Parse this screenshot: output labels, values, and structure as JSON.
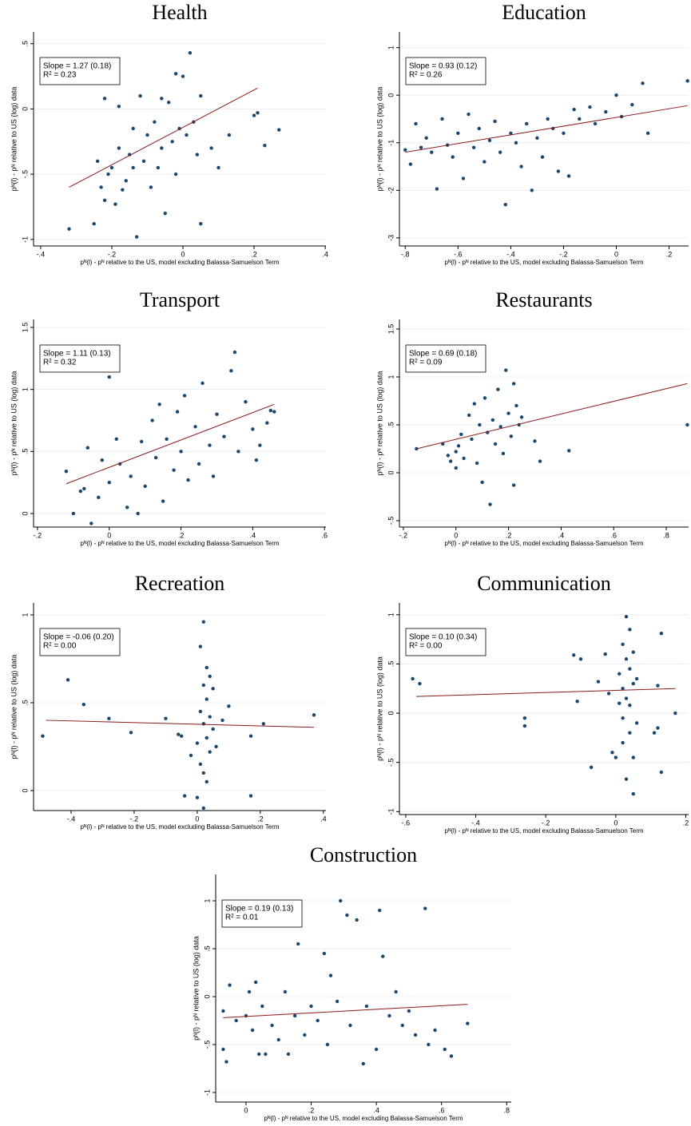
{
  "chart_data": [
    {
      "type": "scatter",
      "title": "Health",
      "annotation": [
        "Slope = 1.27 (0.18)",
        "R² = 0.23"
      ],
      "xlabel": "pᴺ(l) - pᴺ relative to the US, model excluding Balassa-Samuelson Term",
      "ylabel": "pᴺ(l) - pᴺ relative to US (log) data",
      "color": "#1a476f",
      "fit_color": "#8b1a1a",
      "grid": true,
      "xlim": [
        -0.42,
        0.402
      ],
      "ylim": [
        -1.05,
        0.59
      ],
      "xticks": [
        {
          "value": -0.4,
          "label": "-.4"
        },
        {
          "value": -0.2,
          "label": "-.2"
        },
        0,
        {
          "value": 0.2,
          "label": ".2"
        },
        {
          "value": 0.4,
          "label": ".4"
        }
      ],
      "yticks": [
        -1,
        {
          "value": -0.5,
          "label": "-.5"
        },
        0,
        {
          "value": 0.5,
          "label": ".5"
        }
      ],
      "x": [
        -0.32,
        -0.25,
        -0.24,
        -0.23,
        -0.22,
        -0.22,
        -0.21,
        -0.2,
        -0.19,
        -0.18,
        -0.17,
        -0.16,
        -0.15,
        -0.14,
        -0.13,
        -0.12,
        -0.11,
        -0.1,
        -0.09,
        -0.08,
        -0.07,
        -0.06,
        -0.05,
        -0.04,
        -0.03,
        -0.02,
        -0.01,
        0,
        0.01,
        0.02,
        0.03,
        0.04,
        0.05,
        0.05,
        0.08,
        0.1,
        0.13,
        0.2,
        0.23,
        0.27,
        0.21,
        -0.18,
        -0.14,
        -0.06,
        -0.02
      ],
      "y": [
        -0.92,
        -0.88,
        -0.4,
        -0.6,
        -0.7,
        0.08,
        -0.5,
        -0.45,
        -0.73,
        -0.3,
        -0.62,
        -0.55,
        -0.35,
        -0.15,
        -0.98,
        0.1,
        -0.4,
        -0.2,
        -0.6,
        -0.1,
        -0.45,
        -0.3,
        -0.8,
        0.05,
        -0.25,
        -0.5,
        -0.15,
        0.25,
        -0.2,
        0.43,
        -0.1,
        -0.35,
        0.1,
        -0.88,
        -0.3,
        -0.45,
        -0.2,
        -0.05,
        -0.28,
        -0.16,
        -0.03,
        0.02,
        -0.45,
        0.08,
        0.27
      ],
      "fit_x": [
        -0.32,
        0.21
      ],
      "fit_y": [
        -0.6,
        0.16
      ]
    },
    {
      "type": "scatter",
      "title": "Education",
      "annotation": [
        "Slope = 0.93 (0.12)",
        "R² = 0.26"
      ],
      "xlabel": "pᴺ(l) - pᴺ relative to the US, model excluding Balassa-Samuelson Term",
      "ylabel": "pᴺ(l) - pᴺ relative to US (log) data",
      "color": "#1a476f",
      "fit_color": "#8b1a1a",
      "grid": true,
      "xlim": [
        -0.822,
        0.274
      ],
      "ylim": [
        -3.17,
        1.33
      ],
      "xticks": [
        {
          "value": -0.8,
          "label": "-.8"
        },
        {
          "value": -0.6,
          "label": "-.6"
        },
        {
          "value": -0.4,
          "label": "-.4"
        },
        {
          "value": -0.2,
          "label": "-.2"
        },
        0,
        {
          "value": 0.2,
          "label": ".2"
        }
      ],
      "yticks": [
        -3,
        -2,
        -1,
        0,
        1
      ],
      "x": [
        -0.8,
        -0.78,
        -0.76,
        -0.74,
        -0.72,
        -0.7,
        -0.68,
        -0.66,
        -0.64,
        -0.62,
        -0.6,
        -0.58,
        -0.56,
        -0.54,
        -0.52,
        -0.5,
        -0.48,
        -0.46,
        -0.44,
        -0.42,
        -0.4,
        -0.38,
        -0.36,
        -0.34,
        -0.32,
        -0.3,
        -0.28,
        -0.26,
        -0.24,
        -0.22,
        -0.2,
        -0.18,
        -0.16,
        -0.14,
        -0.1,
        -0.08,
        -0.04,
        0,
        0.02,
        0.06,
        0.1,
        0.12,
        0.27
      ],
      "y": [
        -1.15,
        -1.45,
        -0.6,
        -1.1,
        -0.9,
        -1.2,
        -1.97,
        -0.5,
        -1.05,
        -1.3,
        -0.8,
        -1.75,
        -0.4,
        -1.1,
        -0.7,
        -1.4,
        -0.95,
        -0.55,
        -1.2,
        -2.3,
        -0.8,
        -1.0,
        -1.5,
        -0.6,
        -2.0,
        -0.9,
        -1.3,
        -0.5,
        -0.7,
        -1.6,
        -0.8,
        -1.7,
        -0.3,
        -0.5,
        -0.25,
        -0.6,
        -0.35,
        0,
        -0.45,
        -0.2,
        0.25,
        -0.8,
        0.3
      ],
      "fit_x": [
        -0.8,
        0.27
      ],
      "fit_y": [
        -1.2,
        -0.22
      ]
    },
    {
      "type": "scatter",
      "title": "Transport",
      "annotation": [
        "Slope = 1.11 (0.13)",
        "R² = 0.32"
      ],
      "xlabel": "pᴺ(l) - pᴺ relative to the US, model excluding Balassa-Samuelson Term",
      "ylabel": "pᴺ(l) - pᴺ relative to US (log) data",
      "color": "#1a476f",
      "fit_color": "#8b1a1a",
      "grid": true,
      "xlim": [
        -0.211,
        0.604
      ],
      "ylim": [
        -0.109,
        1.564
      ],
      "xticks": [
        {
          "value": -0.2,
          "label": "-.2"
        },
        0,
        {
          "value": 0.2,
          "label": ".2"
        },
        {
          "value": 0.4,
          "label": ".4"
        },
        {
          "value": 0.6,
          "label": ".6"
        }
      ],
      "yticks": [
        0,
        {
          "value": 0.5,
          "label": ".5"
        },
        1,
        1.5
      ],
      "x": [
        -0.12,
        -0.1,
        -0.08,
        -0.07,
        -0.06,
        -0.05,
        -0.03,
        -0.02,
        0,
        0,
        0.02,
        0.03,
        0.05,
        0.06,
        0.08,
        0.09,
        0.1,
        0.12,
        0.13,
        0.14,
        0.15,
        0.16,
        0.18,
        0.19,
        0.2,
        0.21,
        0.22,
        0.24,
        0.25,
        0.26,
        0.28,
        0.29,
        0.3,
        0.32,
        0.34,
        0.35,
        0.36,
        0.38,
        0.4,
        0.41,
        0.42,
        0.44,
        0.45,
        0.46
      ],
      "y": [
        0.34,
        0,
        0.18,
        0.2,
        0.53,
        -0.08,
        0.13,
        0.43,
        0.25,
        1.1,
        0.6,
        0.4,
        0.05,
        0.3,
        0,
        0.58,
        0.22,
        0.75,
        0.45,
        0.88,
        0.1,
        0.6,
        0.35,
        0.82,
        0.5,
        0.95,
        0.27,
        0.7,
        0.4,
        1.05,
        0.55,
        0.3,
        0.8,
        0.62,
        1.15,
        1.3,
        0.5,
        0.9,
        0.68,
        0.43,
        0.55,
        0.73,
        0.83,
        0.82
      ],
      "fit_x": [
        -0.12,
        0.46
      ],
      "fit_y": [
        0.24,
        0.88
      ]
    },
    {
      "type": "scatter",
      "title": "Restaurants",
      "annotation": [
        "Slope = 0.69 (0.18)",
        "R² = 0.09"
      ],
      "xlabel": "pᴺ(l) - pᴺ relative to the US, model excluding Balassa-Samuelson Term",
      "ylabel": "pᴺ(l) - pᴺ relative to US (log) data",
      "color": "#1a476f",
      "fit_color": "#8b1a1a",
      "grid": true,
      "xlim": [
        -0.215,
        0.885
      ],
      "ylim": [
        -0.567,
        1.6
      ],
      "xticks": [
        {
          "value": -0.2,
          "label": "-.2"
        },
        0,
        {
          "value": 0.2,
          "label": ".2"
        },
        {
          "value": 0.4,
          "label": ".4"
        },
        {
          "value": 0.6,
          "label": ".6"
        },
        {
          "value": 0.8,
          "label": ".8"
        }
      ],
      "yticks": [
        {
          "value": -0.5,
          "label": "-.5"
        },
        0,
        {
          "value": 0.5,
          "label": ".5"
        },
        1,
        1.5
      ],
      "x": [
        -0.15,
        -0.05,
        -0.03,
        -0.02,
        0,
        0,
        0.01,
        0.02,
        0.03,
        0.05,
        0.06,
        0.07,
        0.08,
        0.09,
        0.1,
        0.11,
        0.12,
        0.13,
        0.14,
        0.15,
        0.16,
        0.17,
        0.18,
        0.19,
        0.2,
        0.21,
        0.22,
        0.22,
        0.23,
        0.24,
        0.25,
        0.3,
        0.32,
        0.43,
        0.88
      ],
      "y": [
        0.25,
        0.3,
        0.18,
        0.12,
        0.22,
        0.05,
        0.28,
        0.4,
        0.15,
        0.6,
        0.35,
        0.72,
        0.1,
        0.5,
        -0.1,
        0.78,
        0.42,
        -0.33,
        0.55,
        0.3,
        0.87,
        0.48,
        0.2,
        1.07,
        0.62,
        0.38,
        0.93,
        -0.13,
        0.7,
        0.5,
        0.58,
        0.33,
        0.12,
        0.23,
        0.5
      ],
      "fit_x": [
        -0.15,
        0.88
      ],
      "fit_y": [
        0.25,
        0.93
      ]
    },
    {
      "type": "scatter",
      "title": "Recreation",
      "annotation": [
        "Slope = -0.06 (0.20)",
        "R² = 0.00"
      ],
      "xlabel": "pᴺ(l) - pᴺ relative to the US, model excluding Balassa-Samuelson Term",
      "ylabel": "pᴺ(l) - pᴺ relative to US (log) data",
      "color": "#1a476f",
      "fit_color": "#8b1a1a",
      "grid": true,
      "xlim": [
        -0.519,
        0.408
      ],
      "ylim": [
        -0.114,
        1.068
      ],
      "xticks": [
        {
          "value": -0.4,
          "label": "-.4"
        },
        {
          "value": -0.2,
          "label": "-.2"
        },
        0,
        {
          "value": 0.2,
          "label": ".2"
        },
        {
          "value": 0.4,
          "label": ".4"
        }
      ],
      "yticks": [
        0,
        {
          "value": 0.5,
          "label": ".5"
        },
        1
      ],
      "x": [
        -0.49,
        -0.41,
        -0.36,
        -0.28,
        -0.21,
        -0.1,
        -0.06,
        -0.05,
        -0.04,
        -0.02,
        0,
        0,
        0.01,
        0.01,
        0.01,
        0.02,
        0.02,
        0.02,
        0.02,
        0.02,
        0.03,
        0.03,
        0.03,
        0.03,
        0.04,
        0.04,
        0.04,
        0.05,
        0.05,
        0.06,
        0.08,
        0.1,
        0.17,
        0.17,
        0.21,
        0.37
      ],
      "y": [
        0.31,
        0.63,
        0.49,
        0.41,
        0.33,
        0.41,
        0.32,
        0.31,
        -0.03,
        0.2,
        -0.04,
        0.27,
        0.15,
        0.45,
        0.82,
        0.96,
        0.6,
        0.38,
        0.1,
        -0.1,
        0.7,
        0.52,
        0.3,
        0.05,
        0.65,
        0.42,
        0.22,
        0.58,
        0.35,
        0.25,
        0.4,
        0.48,
        0.31,
        -0.03,
        0.38,
        0.43
      ],
      "fit_x": [
        -0.48,
        0.37
      ],
      "fit_y": [
        0.4,
        0.36
      ]
    },
    {
      "type": "scatter",
      "title": "Communication",
      "annotation": [
        "Slope = 0.10 (0.34)",
        "R² = 0.00"
      ],
      "xlabel": "pᴺ(l) - pᴺ relative to the US, model excluding Balassa-Samuelson Term",
      "ylabel": "pᴺ(l) - pᴺ relative to US (log) data",
      "color": "#1a476f",
      "fit_color": "#8b1a1a",
      "grid": true,
      "xlim": [
        -0.618,
        0.208
      ],
      "ylim": [
        -1.03,
        1.12
      ],
      "xticks": [
        {
          "value": -0.6,
          "label": "-.6"
        },
        {
          "value": -0.4,
          "label": "-.4"
        },
        {
          "value": -0.2,
          "label": "-.2"
        },
        0,
        {
          "value": 0.2,
          "label": ".2"
        }
      ],
      "yticks": [
        -1,
        {
          "value": -0.5,
          "label": "-.5"
        },
        0,
        {
          "value": 0.5,
          "label": ".5"
        },
        1
      ],
      "x": [
        -0.58,
        -0.56,
        -0.26,
        -0.26,
        -0.12,
        -0.11,
        -0.1,
        -0.07,
        -0.05,
        -0.03,
        -0.02,
        -0.01,
        0,
        0.01,
        0.01,
        0.02,
        0.02,
        0.02,
        0.02,
        0.03,
        0.03,
        0.03,
        0.03,
        0.04,
        0.04,
        0.04,
        0.04,
        0.05,
        0.05,
        0.05,
        0.05,
        0.06,
        0.06,
        0.11,
        0.12,
        0.12,
        0.13,
        0.13,
        0.17
      ],
      "y": [
        0.35,
        0.3,
        -0.05,
        -0.13,
        0.59,
        0.12,
        0.55,
        -0.55,
        0.32,
        0.6,
        0.2,
        -0.4,
        -0.45,
        0.1,
        0.4,
        -0.3,
        0.7,
        -0.05,
        0.25,
        0.55,
        -0.67,
        0.15,
        0.98,
        0.45,
        -0.2,
        0.08,
        0.85,
        0.3,
        -0.45,
        0.62,
        -0.82,
        0.35,
        -0.1,
        -0.2,
        0.28,
        -0.15,
        0.81,
        -0.6,
        0
      ],
      "fit_x": [
        -0.57,
        0.17
      ],
      "fit_y": [
        0.17,
        0.25
      ]
    },
    {
      "type": "scatter",
      "title": "Construction",
      "annotation": [
        "Slope = 0.19 (0.13)",
        "R² = 0.01"
      ],
      "xlabel": "pᴺ(l) - pᴺ relative to the US, model excluding Balassa-Samuelson Term",
      "ylabel": "pᴺ(l) - pᴺ relative to US (log) data",
      "color": "#1a476f",
      "fit_color": "#8b1a1a",
      "grid": true,
      "xlim": [
        -0.093,
        0.814
      ],
      "ylim": [
        -1.1,
        1.275
      ],
      "xticks": [
        0,
        {
          "value": 0.2,
          "label": ".2"
        },
        {
          "value": 0.4,
          "label": ".4"
        },
        {
          "value": 0.6,
          "label": ".6"
        },
        {
          "value": 0.8,
          "label": ".8"
        }
      ],
      "yticks": [
        -1,
        {
          "value": -0.5,
          "label": "-.5"
        },
        0,
        {
          "value": 0.5,
          "label": ".5"
        },
        1
      ],
      "x": [
        -0.07,
        -0.07,
        -0.06,
        -0.05,
        -0.03,
        0,
        0.01,
        0.02,
        0.03,
        0.04,
        0.05,
        0.06,
        0.08,
        0.1,
        0.12,
        0.13,
        0.15,
        0.16,
        0.18,
        0.2,
        0.22,
        0.24,
        0.25,
        0.26,
        0.28,
        0.29,
        0.31,
        0.32,
        0.34,
        0.36,
        0.37,
        0.4,
        0.41,
        0.42,
        0.44,
        0.46,
        0.48,
        0.5,
        0.52,
        0.55,
        0.56,
        0.58,
        0.61,
        0.63,
        0.68
      ],
      "y": [
        -0.15,
        -0.55,
        -0.68,
        0.12,
        -0.25,
        -0.2,
        0.05,
        -0.35,
        0.15,
        -0.6,
        -0.1,
        -0.6,
        -0.3,
        -0.45,
        0.05,
        -0.6,
        -0.2,
        0.55,
        -0.4,
        -0.1,
        -0.25,
        0.45,
        -0.5,
        0.22,
        -0.05,
        1.0,
        0.85,
        -0.3,
        0.8,
        -0.7,
        -0.1,
        -0.55,
        0.9,
        0.42,
        -0.2,
        0.05,
        -0.3,
        -0.15,
        -0.4,
        0.92,
        -0.5,
        -0.35,
        -0.55,
        -0.62,
        -0.28
      ],
      "fit_x": [
        -0.07,
        0.68
      ],
      "fit_y": [
        -0.22,
        -0.08
      ]
    }
  ]
}
